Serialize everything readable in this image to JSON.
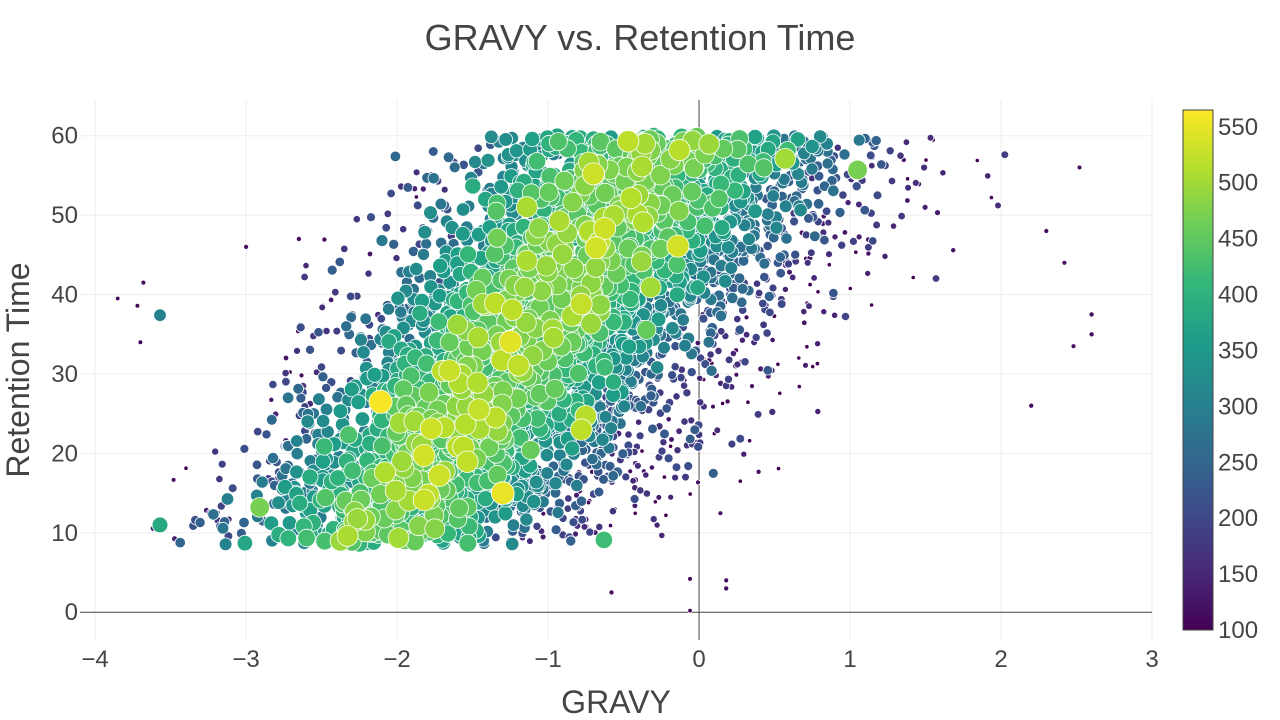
{
  "chart_data": {
    "type": "scatter",
    "title": "GRAVY vs. Retention Time",
    "xlabel": "GRAVY",
    "ylabel": "Retention Time",
    "xlim": [
      -4.1,
      3.0
    ],
    "ylim": [
      -3.5,
      64.5
    ],
    "x_ticks": [
      -4,
      -3,
      -2,
      -1,
      0,
      1,
      2,
      3
    ],
    "x_tick_labels": [
      "−4",
      "−3",
      "−2",
      "−1",
      "0",
      "1",
      "2",
      "3"
    ],
    "y_ticks": [
      0,
      10,
      20,
      30,
      40,
      50,
      60
    ],
    "y_tick_labels": [
      "0",
      "10",
      "20",
      "30",
      "40",
      "50",
      "60"
    ],
    "grid": true,
    "zero_lines": true,
    "colorscale": "viridis",
    "colorbar": {
      "range": [
        100,
        565
      ],
      "ticks": [
        100,
        150,
        200,
        250,
        300,
        350,
        400,
        450,
        500,
        550
      ],
      "tick_labels": [
        "100",
        "150",
        "200",
        "250",
        "300",
        "350",
        "400",
        "450",
        "500",
        "550"
      ]
    },
    "point_count_estimate": 4000,
    "highlight_points": [
      {
        "x": -3.57,
        "y": 11.0,
        "c": 380
      },
      {
        "x": -3.57,
        "y": 37.4,
        "c": 300
      },
      {
        "x": -2.11,
        "y": 26.5,
        "c": 560
      },
      {
        "x": -1.3,
        "y": 15.0,
        "c": 550
      },
      {
        "x": -1.72,
        "y": 17.2,
        "c": 530
      },
      {
        "x": -1.56,
        "y": 20.8,
        "c": 520
      },
      {
        "x": -2.08,
        "y": 17.6,
        "c": 510
      },
      {
        "x": -0.7,
        "y": 55.2,
        "c": 530
      },
      {
        "x": -0.14,
        "y": 46.1,
        "c": 535
      },
      {
        "x": -0.78,
        "y": 38.8,
        "c": 525
      },
      {
        "x": -1.35,
        "y": 38.9,
        "c": 520
      },
      {
        "x": -0.47,
        "y": 59.3,
        "c": 520
      },
      {
        "x": -0.13,
        "y": 58.2,
        "c": 515
      },
      {
        "x": 0.57,
        "y": 57.1,
        "c": 500
      },
      {
        "x": 1.05,
        "y": 55.7,
        "c": 470
      },
      {
        "x": -0.78,
        "y": 23.0,
        "c": 520
      },
      {
        "x": -0.75,
        "y": 24.7,
        "c": 515
      },
      {
        "x": -1.75,
        "y": 10.5,
        "c": 480
      },
      {
        "x": -0.63,
        "y": 9.1,
        "c": 420
      },
      {
        "x": -0.32,
        "y": 40.9,
        "c": 500
      },
      {
        "x": -1.14,
        "y": 51.0,
        "c": 505
      },
      {
        "x": -1.58,
        "y": 30.0,
        "c": 490
      },
      {
        "x": -2.91,
        "y": 13.2,
        "c": 470
      },
      {
        "x": -2.27,
        "y": 13.6,
        "c": 450
      }
    ]
  }
}
